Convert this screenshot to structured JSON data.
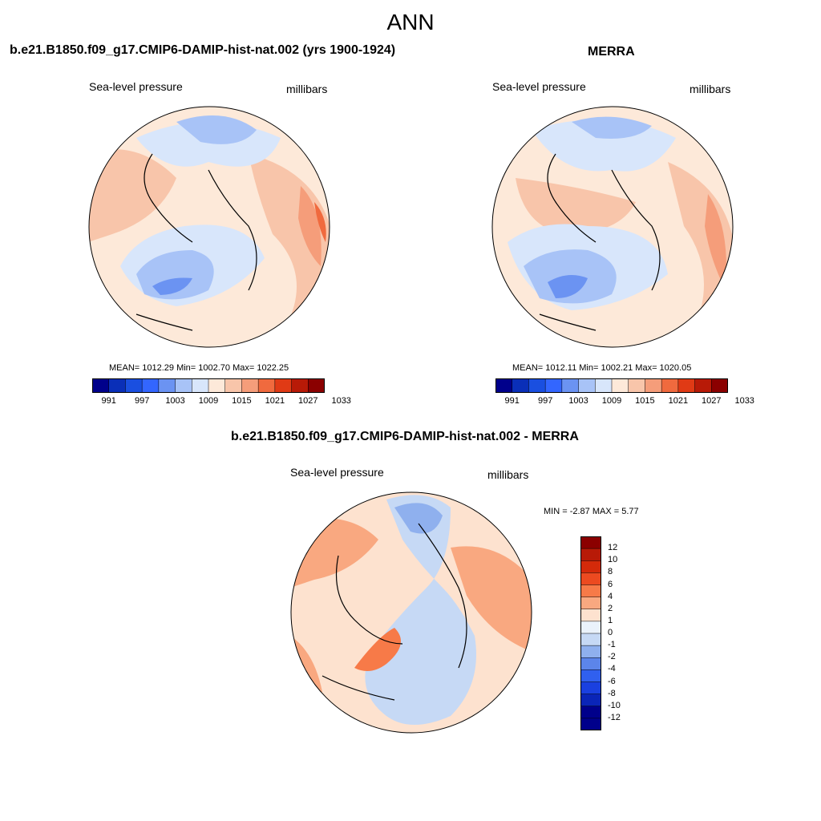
{
  "main_title": "ANN",
  "panels": [
    {
      "title": "b.e21.B1850.f09_g17.CMIP6-DAMIP-hist-nat.002 (yrs 1900-1924)",
      "left_label": "Sea-level pressure",
      "right_label": "millibars",
      "stats": "MEAN= 1012.29  Min= 1002.70  Max= 1022.25",
      "colorbar_labels": [
        "991",
        "997",
        "1003",
        "1009",
        "1015",
        "1021",
        "1027",
        "1033"
      ]
    },
    {
      "title": "MERRA",
      "left_label": "Sea-level pressure",
      "right_label": "millibars",
      "stats": "MEAN= 1012.11  Min= 1002.21  Max= 1020.05",
      "colorbar_labels": [
        "991",
        "997",
        "1003",
        "1009",
        "1015",
        "1021",
        "1027",
        "1033"
      ]
    },
    {
      "title": "b.e21.B1850.f09_g17.CMIP6-DAMIP-hist-nat.002 - MERRA",
      "left_label": "Sea-level pressure",
      "right_label": "millibars",
      "stats": "MIN =  -2.87 MAX =   5.77",
      "colorbar_labels": [
        "12",
        "10",
        "8",
        "6",
        "4",
        "2",
        "1",
        "0",
        "-1",
        "-2",
        "-4",
        "-6",
        "-8",
        "-10",
        "-12"
      ]
    }
  ],
  "colors": {
    "abs_colorbar": [
      "#00008b",
      "#0a2fb8",
      "#1a4fe0",
      "#3366ff",
      "#6b93f2",
      "#a8c3f7",
      "#d8e6fb",
      "#fde9d9",
      "#f8c5aa",
      "#f59d7a",
      "#f06a3e",
      "#e03a15",
      "#b81a07",
      "#8b0000"
    ],
    "diff_colorbar": [
      "#8b0000",
      "#b81a07",
      "#d42a0a",
      "#ec4a20",
      "#f77a48",
      "#f9a880",
      "#fde2cf",
      "#eaf2fb",
      "#c6d9f5",
      "#8fb0ee",
      "#5c85ea",
      "#3060ef",
      "#1a40e0",
      "#0a25b8",
      "#00008b"
    ],
    "ocean_neutral": "#fde9d9",
    "low_blue": "#a8c3f7",
    "high_red": "#f59d7a"
  }
}
